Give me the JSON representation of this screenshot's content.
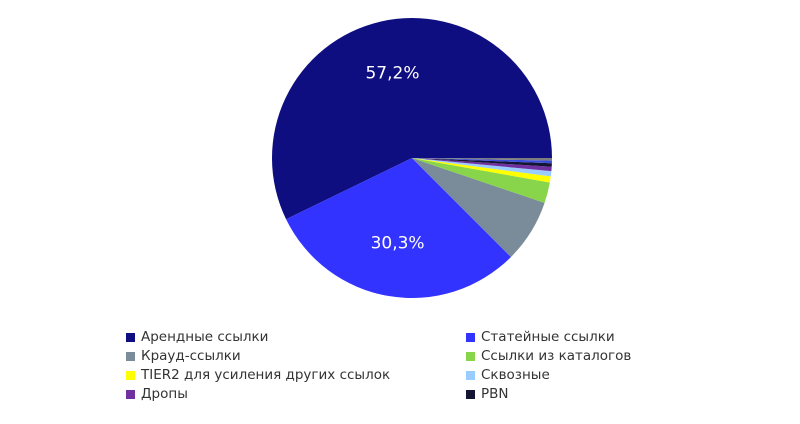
{
  "chart_data": {
    "type": "pie",
    "categories": [
      "Арендные ссылки",
      "Статейные ссылки",
      "Крауд-ссылки",
      "Ссылки из каталогов",
      "TIER2 для усиления других ссылок",
      "Сквозные",
      "Дропы",
      "PBN",
      "",
      ""
    ],
    "values": [
      57.2,
      30.3,
      7.3,
      2.4,
      0.7,
      0.6,
      0.5,
      0.4,
      0.3,
      0.3
    ],
    "data_labels": [
      "57,2%",
      "30,3%",
      "",
      "",
      "",
      "",
      "",
      "",
      "",
      ""
    ],
    "colors": [
      "#0e0e80",
      "#3333ff",
      "#7a8c99",
      "#88d44a",
      "#ffff00",
      "#99ccff",
      "#7030a0",
      "#141433",
      "#3d4ddb",
      "#7d7d7d"
    ],
    "start_angle_deg": 0,
    "direction": "counterclockwise",
    "legend_position": "bottom",
    "legend_columns": 2
  }
}
